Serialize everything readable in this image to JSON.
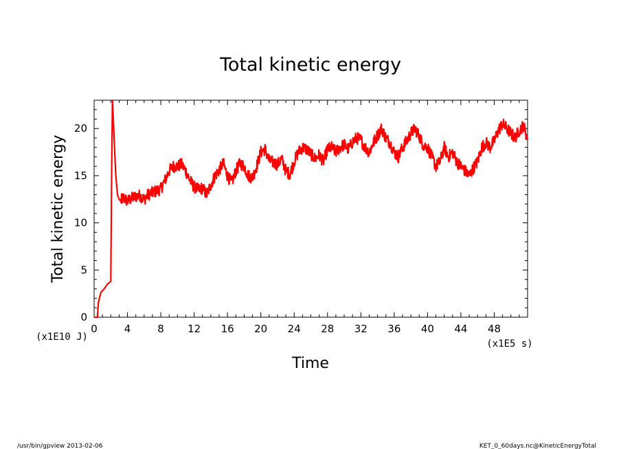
{
  "chart_data": {
    "type": "line",
    "title": "Total kinetic energy",
    "xlabel": "Time",
    "ylabel": "Total kinetic energy",
    "x_unit": "(x1E5 s)",
    "y_unit": "(x1E10 J)",
    "xlim": [
      0,
      52
    ],
    "ylim": [
      0,
      23
    ],
    "x_ticks": [
      0,
      4,
      8,
      12,
      16,
      20,
      24,
      28,
      32,
      36,
      40,
      44,
      48
    ],
    "x_tick_labels": [
      "0",
      "4",
      "8",
      "12",
      "16",
      "20",
      "24",
      "28",
      "32",
      "36",
      "40",
      "44",
      "48"
    ],
    "y_ticks": [
      0,
      5,
      10,
      15,
      20
    ],
    "y_tick_labels": [
      "0",
      "5",
      "10",
      "15",
      "20"
    ],
    "grid": false,
    "series": [
      {
        "color": "#ff0000",
        "x": [
          0.0,
          0.4,
          0.5,
          0.8,
          1.2,
          1.6,
          2.0,
          2.1,
          2.2,
          2.3,
          2.4,
          2.6,
          2.8,
          3.0,
          3.2,
          3.5,
          4.0,
          4.5,
          5.0,
          5.5,
          6.0,
          6.5,
          7.0,
          7.5,
          8.0,
          8.5,
          9.0,
          9.5,
          10.0,
          10.5,
          11.0,
          11.5,
          12.0,
          12.5,
          13.0,
          13.5,
          14.0,
          14.5,
          15.0,
          15.5,
          16.0,
          16.5,
          17.0,
          17.5,
          18.0,
          18.5,
          19.0,
          19.5,
          20.0,
          20.5,
          21.0,
          21.5,
          22.0,
          22.5,
          23.0,
          23.5,
          24.0,
          24.5,
          25.0,
          25.5,
          26.0,
          26.5,
          27.0,
          27.5,
          28.0,
          28.5,
          29.0,
          29.5,
          30.0,
          30.5,
          31.0,
          31.5,
          32.0,
          32.5,
          33.0,
          33.5,
          34.0,
          34.5,
          35.0,
          35.5,
          36.0,
          36.5,
          37.0,
          37.5,
          38.0,
          38.5,
          39.0,
          39.5,
          40.0,
          40.5,
          41.0,
          41.5,
          42.0,
          42.5,
          43.0,
          43.5,
          44.0,
          44.5,
          45.0,
          45.5,
          46.0,
          46.5,
          47.0,
          47.5,
          48.0,
          48.5,
          49.0,
          49.5,
          50.0,
          50.5,
          51.0,
          51.5,
          52.0
        ],
        "y": [
          0.0,
          0.0,
          1.5,
          2.6,
          3.0,
          3.5,
          3.8,
          15.0,
          23.0,
          21.0,
          19.0,
          15.0,
          13.0,
          12.5,
          12.3,
          12.7,
          12.3,
          12.6,
          12.8,
          12.9,
          12.5,
          13.0,
          13.2,
          13.4,
          13.6,
          14.5,
          15.5,
          16.0,
          16.0,
          16.2,
          15.5,
          14.5,
          13.8,
          13.5,
          13.7,
          13.0,
          14.0,
          15.0,
          15.6,
          16.3,
          15.0,
          14.2,
          15.5,
          16.3,
          16.0,
          15.0,
          14.8,
          16.0,
          17.5,
          17.8,
          16.6,
          16.4,
          16.2,
          16.8,
          15.5,
          15.2,
          16.5,
          17.5,
          18.0,
          17.8,
          17.3,
          16.8,
          17.2,
          16.5,
          17.8,
          18.0,
          17.5,
          18.0,
          18.3,
          17.8,
          18.6,
          19.0,
          18.8,
          18.0,
          17.5,
          18.5,
          19.3,
          20.0,
          19.0,
          18.5,
          17.5,
          17.0,
          18.0,
          18.7,
          19.5,
          20.0,
          19.2,
          18.2,
          18.0,
          17.0,
          16.0,
          16.5,
          18.0,
          17.0,
          17.5,
          16.5,
          16.0,
          15.5,
          15.0,
          15.8,
          16.5,
          18.0,
          18.5,
          18.0,
          18.7,
          19.8,
          20.5,
          20.0,
          19.5,
          19.0,
          19.8,
          20.3,
          19.0
        ]
      }
    ]
  },
  "footer": {
    "left": "/usr/bin/gpview  2013-02-06",
    "right": "KET_0_60days.nc@KineticEnergyTotal"
  }
}
